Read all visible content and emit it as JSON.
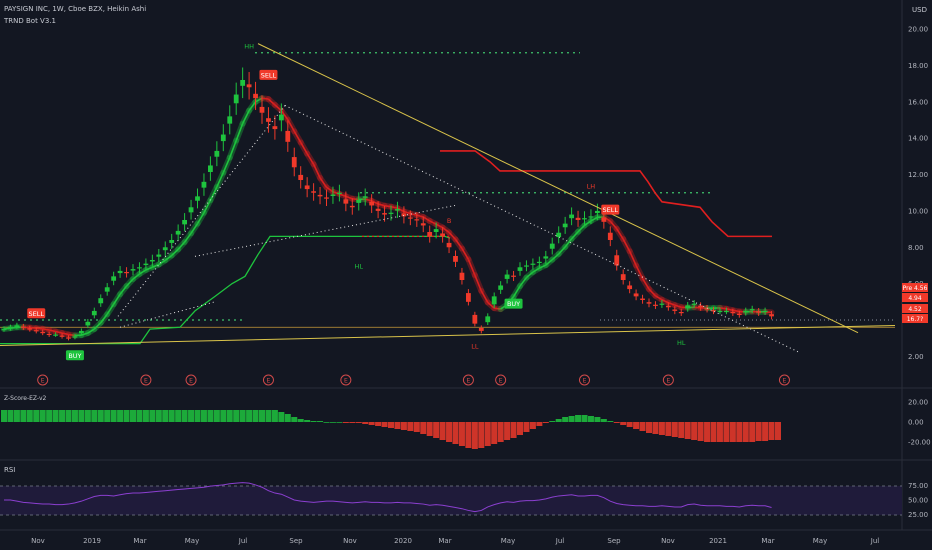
{
  "header": {
    "title": "PAYSIGN INC, 1W, Cboe BZX, Heikin Ashi",
    "indicator": "TRND Bot V3.1",
    "currency": "USD"
  },
  "oscillator_label": "Z-Score-EZ-v2",
  "rsi_label": "RSI",
  "colors": {
    "background": "#131722",
    "bull": "#1ec43e",
    "bear": "#f0392a",
    "trendline": "#d9c34a",
    "rsi": "#8b3fd0",
    "dotted_green": "#3fc36b"
  },
  "chart_data": {
    "type": "candlestick",
    "price_axis": {
      "ticks": [
        "20.00",
        "18.00",
        "16.00",
        "14.00",
        "12.00",
        "10.00",
        "8.00",
        "6.00",
        "4.00",
        "2.00"
      ],
      "ylim": [
        1.8,
        20.5
      ]
    },
    "time_axis": [
      "Nov",
      "2019",
      "Mar",
      "May",
      "Jul",
      "Sep",
      "Nov",
      "2020",
      "Mar",
      "May",
      "Jul",
      "Sep",
      "Nov",
      "2021",
      "Mar",
      "May",
      "Jul"
    ],
    "osc_axis": [
      "20.00",
      "0.00",
      "-20.00"
    ],
    "rsi_axis": [
      "75.00",
      "50.00",
      "25.00"
    ],
    "price_labels": [
      {
        "text": "Pre",
        "value": "4.56",
        "color": "#f0392a"
      },
      {
        "text": "4.94",
        "color": "#f0392a"
      },
      {
        "text": "4.52",
        "color": "#f0392a"
      },
      {
        "text": "16.7?",
        "color": "#f0392a"
      }
    ],
    "signals": [
      {
        "label": "SELL",
        "week": 5,
        "color": "#f0392a"
      },
      {
        "label": "BUY",
        "week": 11,
        "color": "#1ec43e"
      },
      {
        "label": "SELL",
        "week": 41,
        "color": "#f0392a"
      },
      {
        "label": "BUY",
        "week": 79,
        "color": "#1ec43e"
      },
      {
        "label": "SELL",
        "week": 94,
        "color": "#f0392a"
      }
    ],
    "pivots": [
      {
        "label": "HH",
        "week": 38,
        "price": 19.1,
        "color": "#1ec43e"
      },
      {
        "label": "HL",
        "week": 55,
        "price": 7.0,
        "color": "#1ec43e"
      },
      {
        "label": "LL",
        "week": 73,
        "price": 2.6,
        "color": "#f0392a"
      },
      {
        "label": "LH",
        "week": 91,
        "price": 11.4,
        "color": "#f0392a"
      },
      {
        "label": "HL",
        "week": 105,
        "price": 2.8,
        "color": "#1ec43e"
      },
      {
        "label": "B",
        "week": 69,
        "price": 9.5,
        "color": "#f0392a"
      }
    ],
    "earnings_weeks": [
      6,
      22,
      29,
      41,
      53,
      72,
      77,
      90,
      103,
      121
    ],
    "close": [
      3.5,
      3.6,
      3.7,
      3.6,
      3.5,
      3.4,
      3.3,
      3.2,
      3.2,
      3.1,
      3.0,
      3.1,
      3.4,
      3.9,
      4.5,
      5.2,
      5.8,
      6.4,
      6.7,
      6.6,
      6.8,
      6.9,
      7.1,
      7.3,
      7.6,
      8.0,
      8.4,
      8.9,
      9.5,
      10.2,
      10.8,
      11.6,
      12.5,
      13.3,
      14.2,
      15.2,
      16.4,
      17.2,
      16.8,
      16.2,
      15.4,
      14.9,
      14.5,
      15.3,
      13.8,
      12.4,
      11.7,
      11.2,
      11.0,
      10.8,
      10.7,
      10.9,
      11.0,
      10.4,
      10.2,
      10.6,
      10.8,
      10.3,
      10.0,
      9.8,
      9.9,
      10.1,
      9.7,
      9.6,
      9.5,
      9.2,
      8.6,
      9.0,
      8.6,
      8.0,
      7.2,
      6.2,
      5.0,
      3.8,
      3.4,
      4.2,
      5.3,
      5.9,
      6.5,
      6.4,
      6.9,
      7.0,
      7.1,
      7.2,
      7.5,
      8.2,
      8.8,
      9.3,
      9.8,
      9.5,
      9.6,
      9.7,
      10.0,
      9.4,
      8.4,
      7.0,
      6.2,
      5.7,
      5.3,
      5.1,
      4.9,
      4.8,
      4.9,
      4.7,
      4.5,
      4.4,
      4.8,
      4.9,
      4.7,
      4.6,
      4.5,
      4.5,
      4.5,
      4.4,
      4.3,
      4.5,
      4.6,
      4.4,
      4.5,
      4.2
    ],
    "osc": [
      12,
      12,
      12,
      12,
      12,
      12,
      12,
      12,
      12,
      12,
      12,
      12,
      12,
      12,
      12,
      12,
      12,
      12,
      12,
      12,
      12,
      12,
      12,
      12,
      12,
      12,
      12,
      12,
      12,
      12,
      12,
      12,
      12,
      12,
      12,
      12,
      12,
      12,
      12,
      12,
      12,
      12,
      12,
      10,
      8,
      5,
      3,
      2,
      1,
      1,
      0,
      0,
      0,
      -1,
      -1,
      -1,
      -2,
      -3,
      -4,
      -5,
      -6,
      -7,
      -8,
      -9,
      -10,
      -12,
      -14,
      -16,
      -18,
      -20,
      -22,
      -24,
      -26,
      -27,
      -26,
      -24,
      -22,
      -20,
      -18,
      -16,
      -13,
      -10,
      -7,
      -4,
      -1,
      1,
      3,
      5,
      6,
      7,
      7,
      6,
      5,
      3,
      1,
      -1,
      -3,
      -5,
      -7,
      -9,
      -11,
      -12,
      -13,
      -14,
      -15,
      -16,
      -17,
      -18,
      -19,
      -20,
      -20,
      -20,
      -20,
      -20,
      -20,
      -20,
      -20,
      -19,
      -19,
      -18,
      -18
    ],
    "rsi": [
      50,
      50,
      48,
      46,
      45,
      44,
      43,
      43,
      42,
      42,
      43,
      45,
      48,
      52,
      56,
      58,
      58,
      57,
      59,
      61,
      62,
      62,
      63,
      64,
      65,
      66,
      67,
      68,
      69,
      70,
      71,
      72,
      74,
      75,
      76,
      78,
      79,
      80,
      79,
      76,
      72,
      66,
      62,
      60,
      55,
      50,
      48,
      47,
      46,
      47,
      48,
      48,
      47,
      46,
      45,
      46,
      47,
      46,
      46,
      45,
      45,
      46,
      45,
      45,
      44,
      43,
      41,
      42,
      41,
      39,
      37,
      35,
      32,
      30,
      32,
      38,
      42,
      45,
      47,
      46,
      48,
      49,
      49,
      50,
      52,
      55,
      57,
      58,
      59,
      57,
      57,
      58,
      58,
      54,
      48,
      44,
      42,
      41,
      40,
      40,
      39,
      39,
      40,
      39,
      38,
      38,
      42,
      43,
      41,
      40,
      40,
      40,
      39,
      39,
      38,
      40,
      41,
      40,
      40,
      37
    ]
  }
}
